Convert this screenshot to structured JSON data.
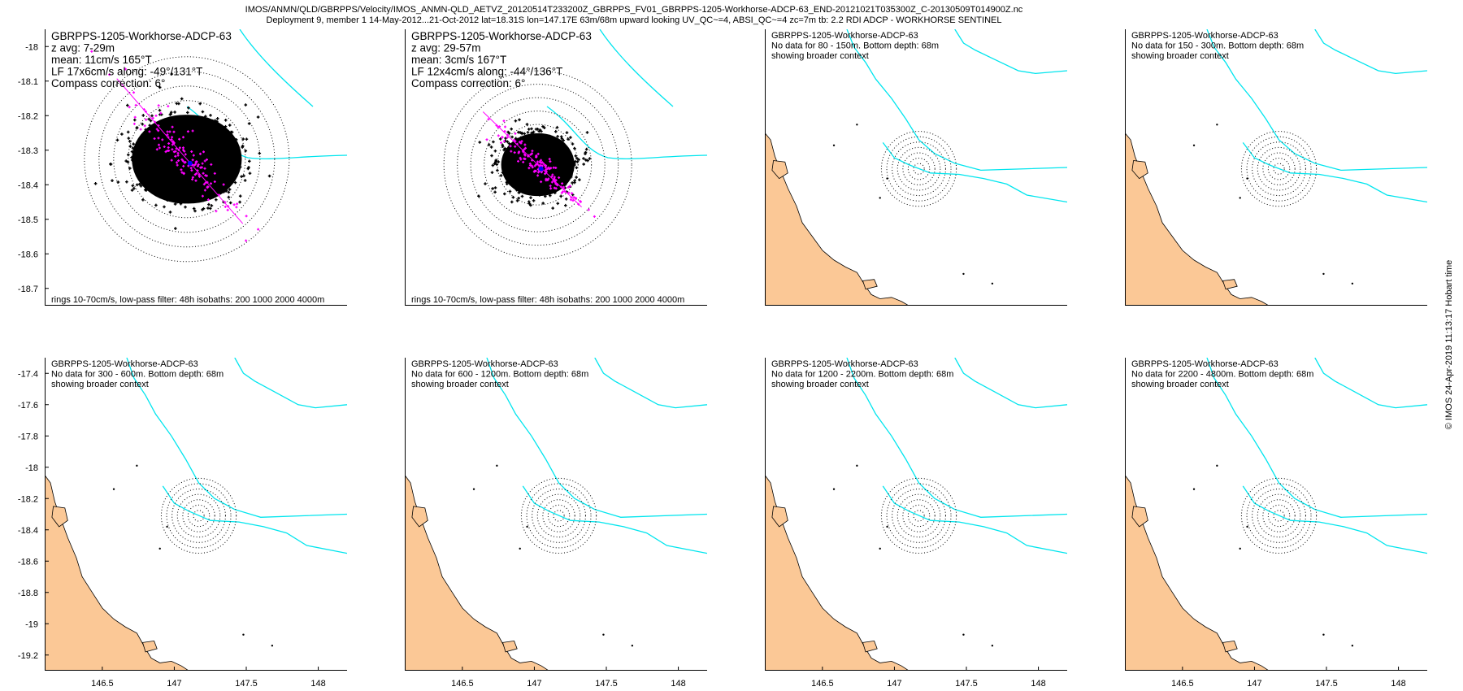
{
  "header": {
    "line1": "IMOS/ANMN/QLD/GBRPPS/Velocity/IMOS_ANMN-QLD_AETVZ_20120514T233200Z_GBRPPS_FV01_GBRPPS-1205-Workhorse-ADCP-63_END-20121021T035300Z_C-20130509T014900Z.nc",
    "line2": "Deployment 9, member 1 14-May-2012...21-Oct-2012 lat=18.31S lon=147.17E 63m/68m upward looking UV_QC~=4, ABSI_QC~=4 zc=7m tb: 2.2 RDI ADCP - WORKHORSE SENTINEL"
  },
  "footer_stamp": "© IMOS 24-Apr-2019 11:13:17 Hobart time",
  "colors": {
    "land": "#fbc896",
    "isobath": "#00e5ee",
    "scatter": "#000000",
    "lowpass": "#ff00ff",
    "mean_marker": "#0000ff"
  },
  "chart_data": [
    {
      "type": "scatter",
      "panel": "top-1",
      "lines": [
        "GBRPPS-1205-Workhorse-ADCP-63",
        "z avg: 7-29m",
        "mean: 11cm/s 165°T",
        "LF 17x6cm/s along: -49°/131°T",
        "Compass correction: 6°"
      ],
      "bottom_note": "rings 10-70cm/s, low-pass filter: 48h isobaths: 200 1000 2000 4000m",
      "ylim": [
        -18.75,
        -17.95
      ],
      "yticks": [
        -18,
        -18.1,
        -18.2,
        -18.3,
        -18.4,
        -18.5,
        -18.6,
        -18.7
      ],
      "xticks": [],
      "center": [
        147.17,
        -18.31
      ],
      "ellipse_ab": [
        0.12,
        0.085
      ],
      "ellipse_rot_deg": -6,
      "lf_axis_angle_deg": -49,
      "rings_cm_s": [
        10,
        20,
        30,
        40,
        50,
        60,
        70
      ],
      "has_data": true
    },
    {
      "type": "scatter",
      "panel": "top-2",
      "lines": [
        "GBRPPS-1205-Workhorse-ADCP-63",
        "z avg: 29-57m",
        "mean: 3cm/s 167°T",
        "LF 12x4cm/s along: -44°/136°T",
        "Compass correction: 6°"
      ],
      "bottom_note": "rings 10-70cm/s, low-pass filter: 48h isobaths: 200 1000 2000 4000m",
      "ylim": [
        -18.75,
        -17.95
      ],
      "yticks": [],
      "xticks": [],
      "center": [
        147.15,
        -18.33
      ],
      "ellipse_ab": [
        0.08,
        0.06
      ],
      "ellipse_rot_deg": -10,
      "lf_axis_angle_deg": -44,
      "rings_cm_s": [
        10,
        20,
        30,
        40,
        50,
        60,
        70
      ],
      "has_data": true
    },
    {
      "type": "scatter",
      "panel": "top-3",
      "lines": [
        "GBRPPS-1205-Workhorse-ADCP-63",
        "No data for 80 - 150m. Bottom depth: 68m",
        "showing broader context"
      ],
      "ylim": [
        -19.3,
        -17.3
      ],
      "yticks": [],
      "xticks": [],
      "center": [
        147.17,
        -18.31
      ],
      "has_data": false
    },
    {
      "type": "scatter",
      "panel": "top-4",
      "lines": [
        "GBRPPS-1205-Workhorse-ADCP-63",
        "No data for 150 - 300m. Bottom depth: 68m",
        "showing broader context"
      ],
      "ylim": [
        -19.3,
        -17.3
      ],
      "yticks": [],
      "xticks": [],
      "center": [
        147.17,
        -18.31
      ],
      "has_data": false
    },
    {
      "type": "scatter",
      "panel": "bottom-1",
      "lines": [
        "GBRPPS-1205-Workhorse-ADCP-63",
        "No data for 300 - 600m. Bottom depth: 68m",
        "showing broader context"
      ],
      "ylim": [
        -19.3,
        -17.3
      ],
      "yticks": [
        -17.4,
        -17.6,
        -17.8,
        -18,
        -18.2,
        -18.4,
        -18.6,
        -18.8,
        -19,
        -19.2
      ],
      "xticks": [
        146.5,
        147,
        147.5,
        148
      ],
      "center": [
        147.17,
        -18.31
      ],
      "has_data": false
    },
    {
      "type": "scatter",
      "panel": "bottom-2",
      "lines": [
        "GBRPPS-1205-Workhorse-ADCP-63",
        "No data for 600 - 1200m. Bottom depth: 68m",
        "showing broader context"
      ],
      "ylim": [
        -19.3,
        -17.3
      ],
      "yticks": [],
      "xticks": [
        146.5,
        147,
        147.5,
        148
      ],
      "center": [
        147.17,
        -18.31
      ],
      "has_data": false
    },
    {
      "type": "scatter",
      "panel": "bottom-3",
      "lines": [
        "GBRPPS-1205-Workhorse-ADCP-63",
        "No data for 1200 - 2200m. Bottom depth: 68m",
        "showing broader context"
      ],
      "ylim": [
        -19.3,
        -17.3
      ],
      "yticks": [],
      "xticks": [
        146.5,
        147,
        147.5,
        148
      ],
      "center": [
        147.17,
        -18.31
      ],
      "has_data": false
    },
    {
      "type": "scatter",
      "panel": "bottom-4",
      "lines": [
        "GBRPPS-1205-Workhorse-ADCP-63",
        "No data for 2200 - 4800m. Bottom depth: 68m",
        "showing broader context"
      ],
      "ylim": [
        -19.3,
        -17.3
      ],
      "yticks": [],
      "xticks": [
        146.5,
        147,
        147.5,
        148
      ],
      "center": [
        147.17,
        -18.31
      ],
      "has_data": false
    }
  ]
}
